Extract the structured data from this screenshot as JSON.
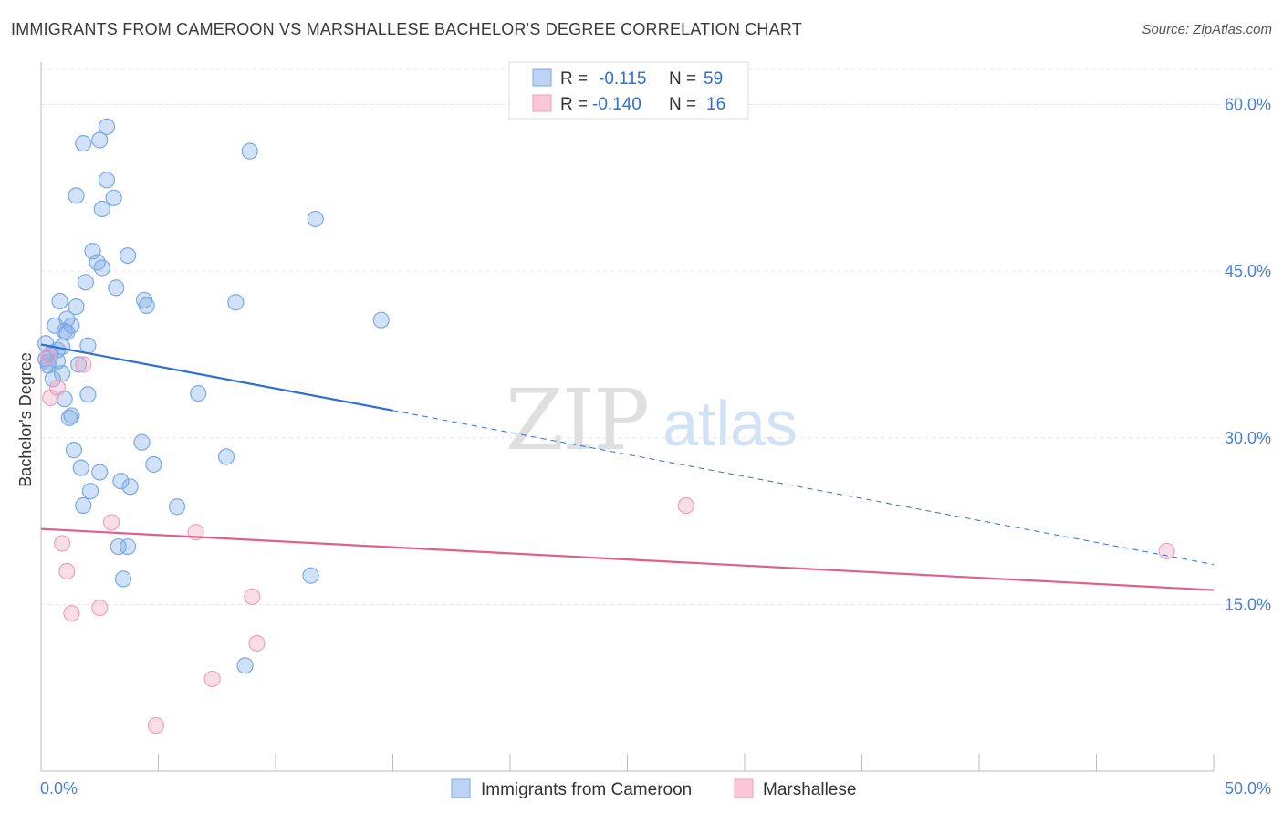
{
  "title": "IMMIGRANTS FROM CAMEROON VS MARSHALLESE BACHELOR'S DEGREE CORRELATION CHART",
  "source": "Source: ZipAtlas.com",
  "watermark": {
    "zip": "ZIP",
    "atlas": "atlas"
  },
  "legend": {
    "rows": [
      {
        "r_label": "R =",
        "r_value": "-0.115",
        "n_label": "N =",
        "n_value": "59"
      },
      {
        "r_label": "R =",
        "r_value": "-0.140",
        "n_label": "N =",
        "n_value": "16"
      }
    ]
  },
  "chart_data": {
    "type": "scatter",
    "xlabel": "",
    "ylabel": "Bachelor's Degree",
    "xlim": [
      0,
      50
    ],
    "ylim": [
      0,
      63
    ],
    "x_tick_labels": [
      "0.0%",
      "50.0%"
    ],
    "y_ticks": [
      15,
      30,
      45,
      60
    ],
    "y_tick_labels": [
      "15.0%",
      "30.0%",
      "45.0%",
      "60.0%"
    ],
    "grid": true,
    "colors": {
      "blue": "#7aaae8",
      "pink": "#f0a0bb",
      "blue_line": "#2e6fd6",
      "pink_line": "#e0608c"
    },
    "series": [
      {
        "name": "Immigrants from Cameroon",
        "color": "#7aaae8",
        "points": [
          [
            0.2,
            38.5
          ],
          [
            0.2,
            37.1
          ],
          [
            0.3,
            36.5
          ],
          [
            0.4,
            37.5
          ],
          [
            0.5,
            35.3
          ],
          [
            0.6,
            40.1
          ],
          [
            0.7,
            37.9
          ],
          [
            0.7,
            36.9
          ],
          [
            0.8,
            42.3
          ],
          [
            0.9,
            38.2
          ],
          [
            0.9,
            35.8
          ],
          [
            1.0,
            33.5
          ],
          [
            1.0,
            39.6
          ],
          [
            1.1,
            40.7
          ],
          [
            1.2,
            31.8
          ],
          [
            1.3,
            32.0
          ],
          [
            1.3,
            40.1
          ],
          [
            1.4,
            28.9
          ],
          [
            1.5,
            51.8
          ],
          [
            1.5,
            41.8
          ],
          [
            1.6,
            36.6
          ],
          [
            1.7,
            27.3
          ],
          [
            1.8,
            56.5
          ],
          [
            1.8,
            23.9
          ],
          [
            1.9,
            44.0
          ],
          [
            2.0,
            33.9
          ],
          [
            2.0,
            38.3
          ],
          [
            2.1,
            25.2
          ],
          [
            2.2,
            46.8
          ],
          [
            2.4,
            45.8
          ],
          [
            2.5,
            56.8
          ],
          [
            2.5,
            26.9
          ],
          [
            2.6,
            50.6
          ],
          [
            2.6,
            45.3
          ],
          [
            2.8,
            53.2
          ],
          [
            2.8,
            58.0
          ],
          [
            3.1,
            51.6
          ],
          [
            3.2,
            43.5
          ],
          [
            3.3,
            20.2
          ],
          [
            3.4,
            26.1
          ],
          [
            3.5,
            17.3
          ],
          [
            3.7,
            46.4
          ],
          [
            3.7,
            20.2
          ],
          [
            3.8,
            25.6
          ],
          [
            4.3,
            29.6
          ],
          [
            4.4,
            42.4
          ],
          [
            4.5,
            41.9
          ],
          [
            4.8,
            27.6
          ],
          [
            5.8,
            23.8
          ],
          [
            6.7,
            34.0
          ],
          [
            7.9,
            28.3
          ],
          [
            8.3,
            42.2
          ],
          [
            8.7,
            9.5
          ],
          [
            8.9,
            55.8
          ],
          [
            11.5,
            17.6
          ],
          [
            11.7,
            49.7
          ],
          [
            14.5,
            40.6
          ],
          [
            0.3,
            36.8
          ],
          [
            1.1,
            39.5
          ]
        ]
      },
      {
        "name": "Marshallese",
        "color": "#f0a0bb",
        "points": [
          [
            0.3,
            37.3
          ],
          [
            0.4,
            33.6
          ],
          [
            0.7,
            34.5
          ],
          [
            0.9,
            20.5
          ],
          [
            1.1,
            18.0
          ],
          [
            1.3,
            14.2
          ],
          [
            1.8,
            36.6
          ],
          [
            2.5,
            14.7
          ],
          [
            3.0,
            22.4
          ],
          [
            4.9,
            4.1
          ],
          [
            6.6,
            21.5
          ],
          [
            7.3,
            8.3
          ],
          [
            9.0,
            15.7
          ],
          [
            9.2,
            11.5
          ],
          [
            27.5,
            23.9
          ],
          [
            48.0,
            19.8
          ]
        ]
      }
    ],
    "trend_lines": [
      {
        "series": "Immigrants from Cameroon",
        "x_solid": [
          0,
          15
        ],
        "x_dashed": [
          15,
          50
        ],
        "y_start": 38.4,
        "y_end": 18.6
      },
      {
        "series": "Marshallese",
        "x_solid": [
          0,
          50
        ],
        "y_start": 21.8,
        "y_end": 16.3
      }
    ]
  }
}
